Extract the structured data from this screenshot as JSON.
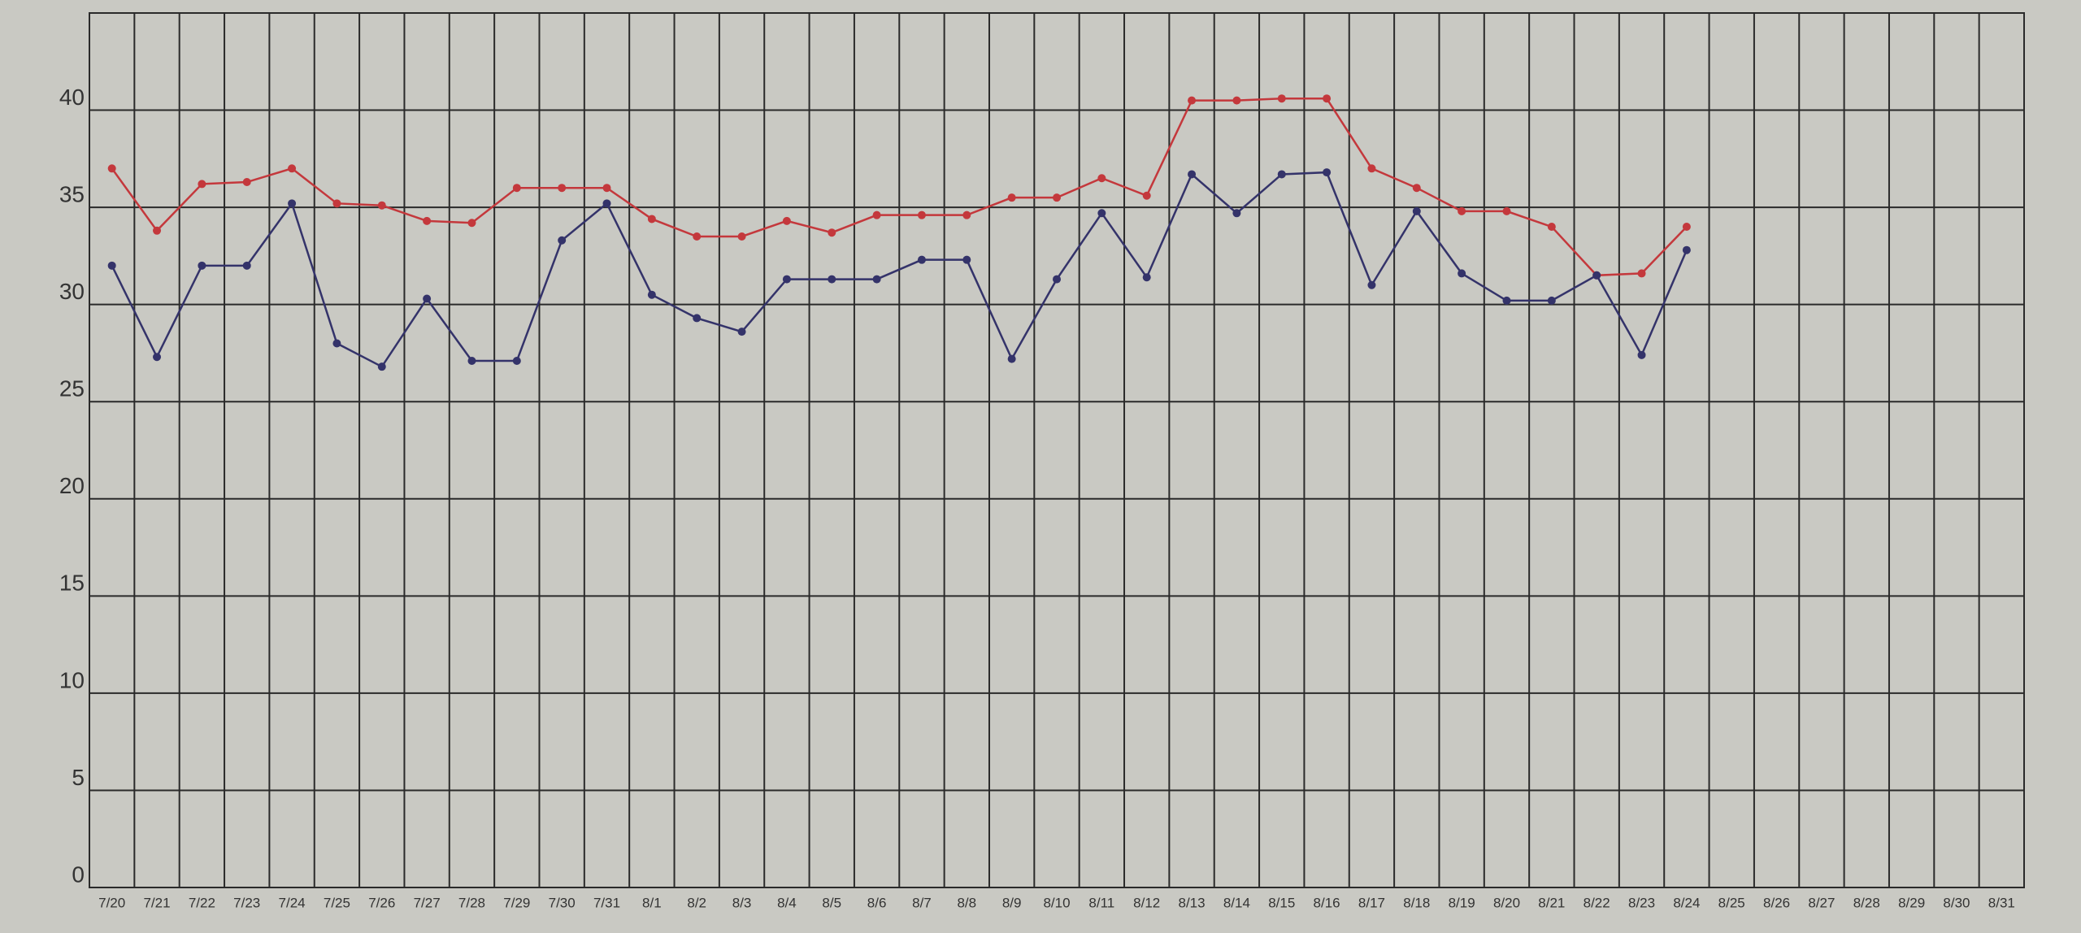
{
  "chart_data": {
    "type": "line",
    "categories": [
      "7/20",
      "7/21",
      "7/22",
      "7/23",
      "7/24",
      "7/25",
      "7/26",
      "7/27",
      "7/28",
      "7/29",
      "7/30",
      "7/31",
      "8/1",
      "8/2",
      "8/3",
      "8/4",
      "8/5",
      "8/6",
      "8/7",
      "8/8",
      "8/9",
      "8/10",
      "8/11",
      "8/12",
      "8/13",
      "8/14",
      "8/15",
      "8/16",
      "8/17",
      "8/18",
      "8/19",
      "8/20",
      "8/21",
      "8/22",
      "8/23",
      "8/24",
      "8/25",
      "8/26",
      "8/27",
      "8/28",
      "8/29",
      "8/30",
      "8/31"
    ],
    "series": [
      {
        "color": "#c4383c",
        "values": [
          37,
          33.8,
          36.2,
          36.3,
          37,
          35.2,
          35.1,
          34.3,
          34.2,
          36,
          36,
          36,
          34.4,
          33.5,
          33.5,
          34.3,
          33.7,
          34.6,
          34.6,
          34.6,
          35.5,
          35.5,
          36.5,
          35.6,
          40.5,
          40.5,
          40.6,
          40.6,
          37,
          36,
          34.8,
          34.8,
          34,
          31.5,
          31.6,
          34,
          null,
          null,
          null,
          null,
          null,
          null,
          null
        ]
      },
      {
        "color": "#34336a",
        "values": [
          32,
          27.3,
          32,
          32,
          35.2,
          28,
          26.8,
          30.3,
          27.1,
          27.1,
          33.3,
          35.2,
          30.5,
          29.3,
          28.6,
          31.3,
          31.3,
          31.3,
          32.3,
          32.3,
          27.2,
          31.3,
          34.7,
          31.4,
          36.7,
          34.7,
          36.7,
          36.8,
          31,
          34.8,
          31.6,
          30.2,
          30.2,
          31.5,
          27.4,
          32.8,
          null,
          null,
          null,
          null,
          null,
          null,
          null
        ]
      }
    ],
    "ylim": [
      0,
      45
    ],
    "yticks": [
      0,
      5,
      10,
      15,
      20,
      25,
      30,
      35,
      40
    ],
    "grid": true
  }
}
